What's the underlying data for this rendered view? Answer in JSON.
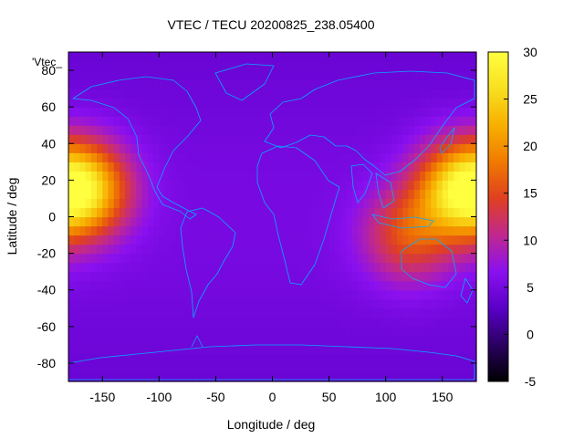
{
  "chart_data": {
    "type": "heatmap",
    "title": "VTEC / TECU 20200825_238.05400",
    "xlabel": "Longitude / deg",
    "ylabel": "Latitude / deg",
    "key_label": "'Vtec_",
    "xlim": [
      -180,
      180
    ],
    "ylim": [
      -90,
      90
    ],
    "x_ticks": [
      -150,
      -100,
      -50,
      0,
      50,
      100,
      150
    ],
    "y_ticks": [
      -80,
      -60,
      -40,
      -20,
      0,
      20,
      40,
      60,
      80
    ],
    "colorbar": {
      "range": [
        -5,
        30
      ],
      "ticks": [
        -5,
        0,
        5,
        10,
        15,
        20,
        25,
        30
      ],
      "palette": [
        "#000000",
        "#2a0060",
        "#5a00c8",
        "#8a10f0",
        "#c02890",
        "#e04020",
        "#f07a00",
        "#f8b000",
        "#f8e020",
        "#ffff40"
      ]
    },
    "grid": false,
    "legend": "top-left",
    "field_model": {
      "background_tec": 4,
      "maxima": [
        {
          "lon": -165,
          "lat": 15,
          "peak_tec": 21
        },
        {
          "lon": 165,
          "lat": 15,
          "peak_tec": 21
        },
        {
          "lon": 120,
          "lat": -10,
          "peak_tec": 14
        }
      ]
    },
    "coastline_color": "#00b0ff"
  }
}
